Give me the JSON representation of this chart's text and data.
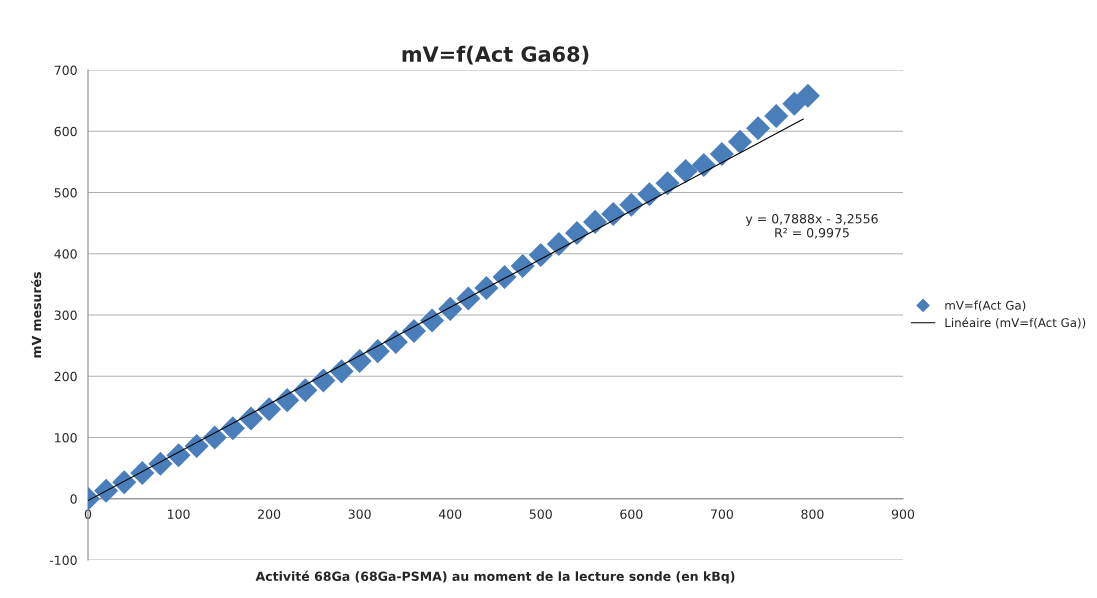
{
  "chart_data": {
    "type": "scatter",
    "title": "mV=f(Act Ga68)",
    "xlabel": "Activité 68Ga (68Ga-PSMA) au moment de la lecture sonde (en kBq)",
    "ylabel": "mV mesurés",
    "series": [
      {
        "name": "mV=f(Act Ga)",
        "color": "#4a7ebb",
        "marker": "diamond",
        "x": [
          0,
          20,
          40,
          60,
          80,
          100,
          120,
          140,
          160,
          180,
          200,
          220,
          240,
          260,
          280,
          300,
          320,
          340,
          360,
          380,
          400,
          420,
          440,
          460,
          480,
          500,
          520,
          540,
          560,
          580,
          600,
          620,
          640,
          660,
          680,
          700,
          720,
          740,
          760,
          780,
          795
        ],
        "values": [
          0,
          13,
          27,
          42,
          57,
          71,
          86,
          100,
          115,
          131,
          146,
          161,
          177,
          193,
          208,
          225,
          241,
          256,
          274,
          291,
          310,
          327,
          344,
          362,
          380,
          398,
          416,
          434,
          452,
          465,
          480,
          497,
          515,
          535,
          545,
          563,
          583,
          605,
          625,
          645,
          658
        ]
      },
      {
        "name": "Linéaire (mV=f(Act Ga))",
        "type": "line",
        "color": "#000000",
        "line_style": "solid",
        "x": [
          0,
          790
        ],
        "values": [
          -3,
          620
        ]
      }
    ],
    "annotations": [
      "y = 0,7888x - 3,2556\nR² = 0,9975"
    ],
    "xlim": [
      0,
      900
    ],
    "ylim": [
      -100,
      700
    ],
    "xticks": [
      0,
      100,
      200,
      300,
      400,
      500,
      600,
      700,
      800,
      900
    ],
    "yticks": [
      -100,
      0,
      100,
      200,
      300,
      400,
      500,
      600,
      700
    ],
    "grid": "y",
    "legend": "right"
  }
}
